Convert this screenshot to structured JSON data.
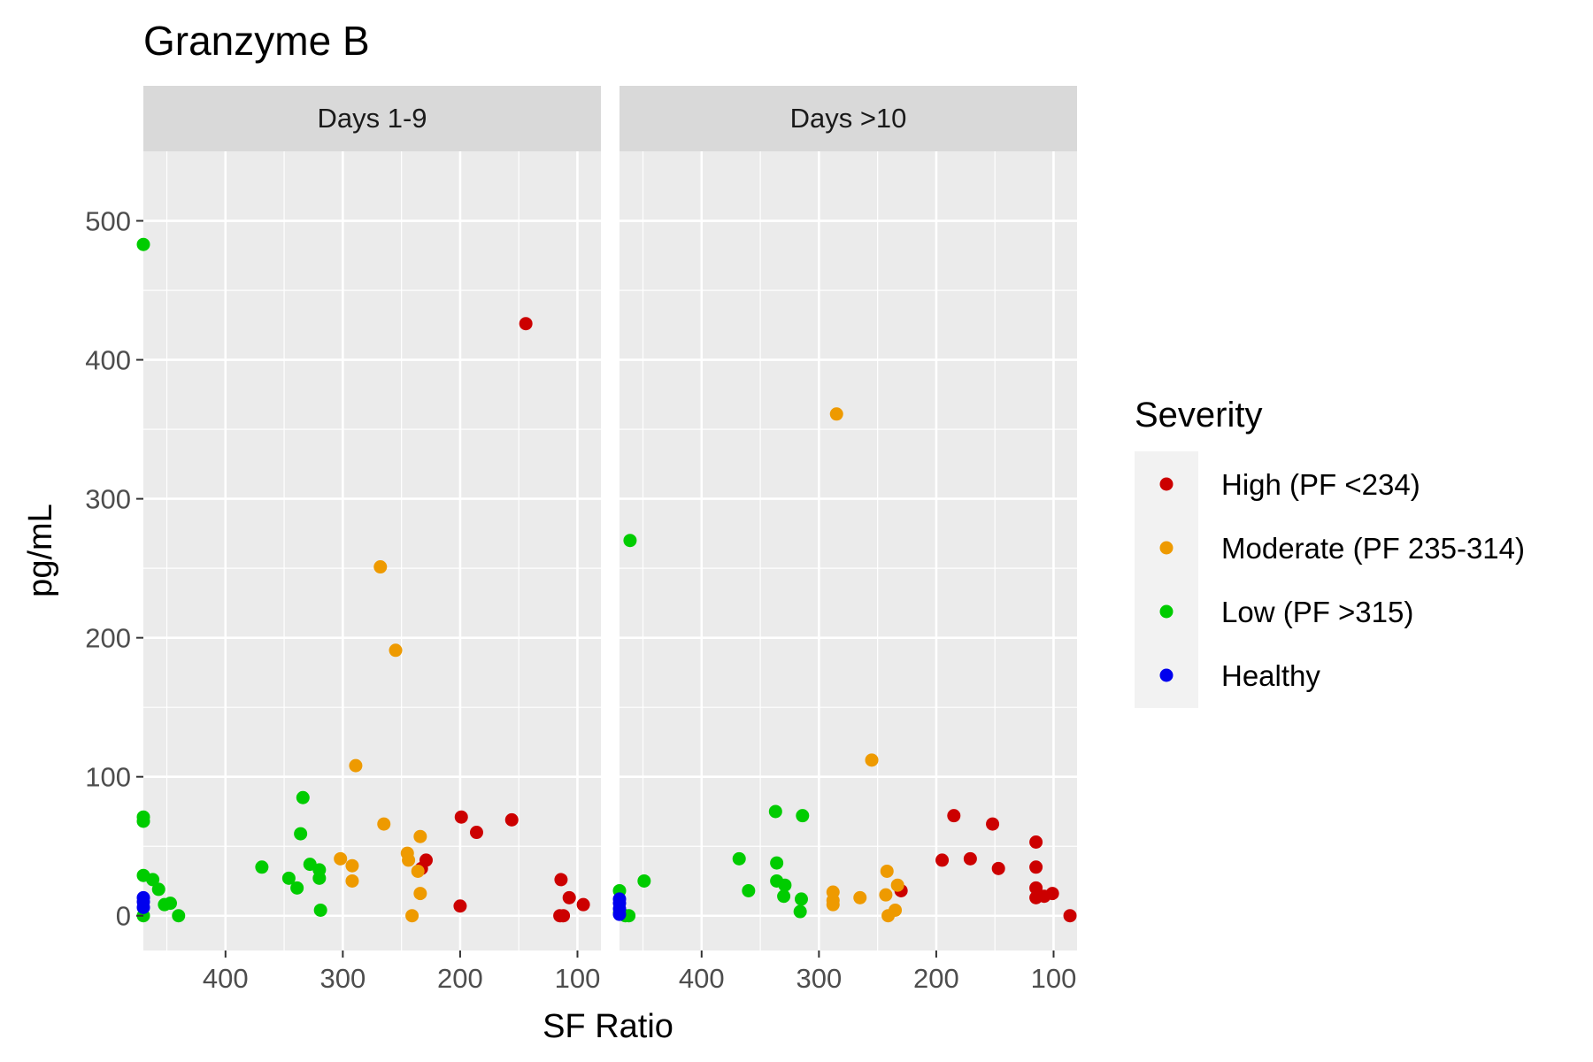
{
  "chart_data": {
    "type": "scatter",
    "title": "Granzyme B",
    "xlabel": "SF Ratio",
    "ylabel": "pg/mL",
    "x_reversed": true,
    "grid": true,
    "legend_position": "right",
    "xlim": [
      80,
      470
    ],
    "ylim": [
      -25,
      550
    ],
    "x_ticks": [
      400,
      300,
      200,
      100
    ],
    "y_ticks": [
      0,
      100,
      200,
      300,
      400,
      500
    ],
    "legend": {
      "title": "Severity",
      "entries": [
        {
          "name": "High (PF <234)",
          "color": "#cc0000"
        },
        {
          "name": "Moderate (PF 235-314)",
          "color": "#ee9a00"
        },
        {
          "name": "Low (PF >315)",
          "color": "#00cc00"
        },
        {
          "name": "Healthy",
          "color": "#0000ee"
        }
      ]
    },
    "panels": [
      {
        "label": "Days 1-9",
        "series": [
          {
            "name": "High (PF <234)",
            "color": "#cc0000",
            "points": [
              [
                144,
                426
              ],
              [
                199,
                71
              ],
              [
                186,
                60
              ],
              [
                156,
                69
              ],
              [
                229,
                40
              ],
              [
                233,
                34
              ],
              [
                200,
                7
              ],
              [
                114,
                26
              ],
              [
                107,
                13
              ],
              [
                115,
                0
              ],
              [
                112,
                0
              ],
              [
                95,
                8
              ]
            ]
          },
          {
            "name": "Moderate (PF 235-314)",
            "color": "#ee9a00",
            "points": [
              [
                268,
                251
              ],
              [
                255,
                191
              ],
              [
                289,
                108
              ],
              [
                265,
                66
              ],
              [
                302,
                41
              ],
              [
                292,
                36
              ],
              [
                292,
                25
              ],
              [
                234,
                57
              ],
              [
                245,
                45
              ],
              [
                244,
                40
              ],
              [
                236,
                32
              ],
              [
                234,
                16
              ],
              [
                241,
                0
              ]
            ]
          },
          {
            "name": "Low (PF >315)",
            "color": "#00cc00",
            "points": [
              [
                470,
                483
              ],
              [
                470,
                71
              ],
              [
                470,
                68
              ],
              [
                470,
                29
              ],
              [
                470,
                0
              ],
              [
                462,
                26
              ],
              [
                457,
                19
              ],
              [
                452,
                8
              ],
              [
                447,
                9
              ],
              [
                440,
                0
              ],
              [
                369,
                35
              ],
              [
                334,
                85
              ],
              [
                336,
                59
              ],
              [
                346,
                27
              ],
              [
                339,
                20
              ],
              [
                328,
                37
              ],
              [
                320,
                33
              ],
              [
                320,
                27
              ],
              [
                319,
                4
              ]
            ]
          },
          {
            "name": "Healthy",
            "color": "#0000ee",
            "points": [
              [
                470,
                13
              ],
              [
                470,
                10
              ],
              [
                470,
                6
              ]
            ]
          }
        ]
      },
      {
        "label": "Days >10",
        "series": [
          {
            "name": "High (PF <234)",
            "color": "#cc0000",
            "points": [
              [
                185,
                72
              ],
              [
                152,
                66
              ],
              [
                195,
                40
              ],
              [
                171,
                41
              ],
              [
                147,
                34
              ],
              [
                230,
                18
              ],
              [
                115,
                53
              ],
              [
                115,
                35
              ],
              [
                115,
                20
              ],
              [
                115,
                13
              ],
              [
                108,
                14
              ],
              [
                101,
                16
              ],
              [
                86,
                0
              ]
            ]
          },
          {
            "name": "Moderate (PF 235-314)",
            "color": "#ee9a00",
            "points": [
              [
                285,
                361
              ],
              [
                255,
                112
              ],
              [
                242,
                32
              ],
              [
                233,
                22
              ],
              [
                288,
                17
              ],
              [
                288,
                11
              ],
              [
                288,
                8
              ],
              [
                265,
                13
              ],
              [
                243,
                15
              ],
              [
                235,
                4
              ],
              [
                241,
                0
              ]
            ]
          },
          {
            "name": "Low (PF >315)",
            "color": "#00cc00",
            "points": [
              [
                461,
                270
              ],
              [
                449,
                25
              ],
              [
                470,
                18
              ],
              [
                470,
                2
              ],
              [
                465,
                0
              ],
              [
                462,
                0
              ],
              [
                368,
                41
              ],
              [
                360,
                18
              ],
              [
                337,
                75
              ],
              [
                336,
                38
              ],
              [
                336,
                25
              ],
              [
                329,
                22
              ],
              [
                330,
                14
              ],
              [
                314,
                72
              ],
              [
                315,
                12
              ],
              [
                316,
                3
              ]
            ]
          },
          {
            "name": "Healthy",
            "color": "#0000ee",
            "points": [
              [
                470,
                12
              ],
              [
                470,
                9
              ],
              [
                470,
                5
              ],
              [
                470,
                1
              ]
            ]
          }
        ]
      }
    ]
  }
}
